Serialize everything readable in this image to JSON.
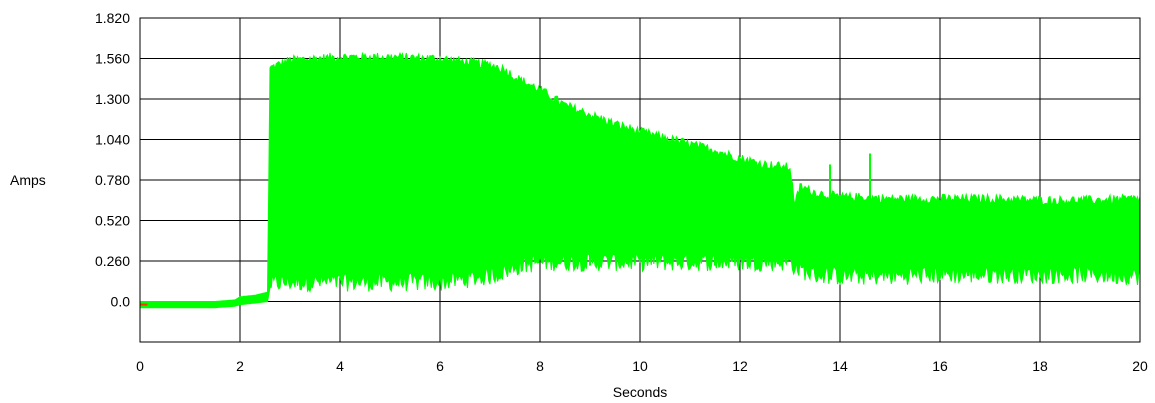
{
  "chart_data": {
    "type": "area",
    "title": "",
    "xlabel": "Seconds",
    "ylabel": "Amps",
    "xlim": [
      0,
      20
    ],
    "ylim": [
      -0.26,
      1.82
    ],
    "grid": true,
    "x_ticks": [
      {
        "value": 0,
        "label": "0"
      },
      {
        "value": 2,
        "label": "2"
      },
      {
        "value": 4,
        "label": "4"
      },
      {
        "value": 6,
        "label": "6"
      },
      {
        "value": 8,
        "label": "8"
      },
      {
        "value": 10,
        "label": "10"
      },
      {
        "value": 12,
        "label": "12"
      },
      {
        "value": 14,
        "label": "14"
      },
      {
        "value": 16,
        "label": "16"
      },
      {
        "value": 18,
        "label": "18"
      },
      {
        "value": 20,
        "label": "20"
      }
    ],
    "y_ticks": [
      {
        "value": 0.0,
        "label": "0.0"
      },
      {
        "value": 0.26,
        "label": "0.260"
      },
      {
        "value": 0.52,
        "label": "0.520"
      },
      {
        "value": 0.78,
        "label": "0.780"
      },
      {
        "value": 1.04,
        "label": "1.040"
      },
      {
        "value": 1.3,
        "label": "1.300"
      },
      {
        "value": 1.56,
        "label": "1.560"
      },
      {
        "value": 1.82,
        "label": "1.820"
      }
    ],
    "series": [
      {
        "color": "#00ff00",
        "envelope": {
          "x": [
            0,
            1.5,
            1.9,
            2.0,
            2.3,
            2.55,
            2.6,
            3.0,
            4.0,
            5.0,
            6.0,
            6.5,
            7.0,
            7.3,
            7.5,
            8.0,
            8.5,
            9.0,
            9.5,
            10.0,
            10.5,
            11.0,
            11.5,
            12.0,
            12.5,
            13.0,
            13.1,
            13.2,
            13.5,
            14.0,
            14.5,
            15.0,
            16.0,
            17.0,
            18.0,
            19.0,
            20.0
          ],
          "y_upper": [
            0.0,
            0.0,
            0.01,
            0.03,
            0.04,
            0.06,
            1.5,
            1.55,
            1.57,
            1.57,
            1.56,
            1.54,
            1.52,
            1.49,
            1.44,
            1.36,
            1.26,
            1.2,
            1.14,
            1.09,
            1.05,
            1.01,
            0.97,
            0.92,
            0.88,
            0.86,
            0.62,
            0.74,
            0.7,
            0.67,
            0.67,
            0.66,
            0.66,
            0.66,
            0.65,
            0.65,
            0.66
          ],
          "y_lower": [
            -0.04,
            -0.04,
            -0.03,
            -0.02,
            -0.01,
            0.0,
            0.09,
            0.1,
            0.1,
            0.1,
            0.1,
            0.12,
            0.14,
            0.17,
            0.2,
            0.23,
            0.23,
            0.23,
            0.23,
            0.23,
            0.23,
            0.23,
            0.23,
            0.23,
            0.23,
            0.23,
            0.2,
            0.18,
            0.15,
            0.14,
            0.14,
            0.14,
            0.15,
            0.15,
            0.15,
            0.15,
            0.14
          ]
        },
        "spikes": [
          {
            "x": 13.8,
            "y": 0.88
          },
          {
            "x": 14.6,
            "y": 0.95
          },
          {
            "x": 7.4,
            "y": 0.48
          },
          {
            "x": 9.0,
            "y": 0.55
          },
          {
            "x": 11.5,
            "y": 0.55
          }
        ]
      },
      {
        "color": "#ff3300",
        "points": [
          {
            "x": 0.0,
            "y": -0.02
          },
          {
            "x": 0.15,
            "y": -0.02
          }
        ]
      }
    ]
  }
}
